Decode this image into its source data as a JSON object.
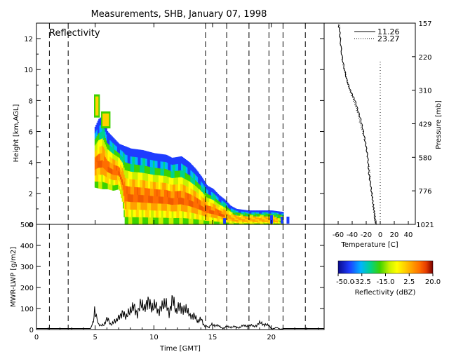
{
  "page_title": "Measurements, SHB, January 07, 1998",
  "chart_data": [
    {
      "id": "reflectivity",
      "type": "heatmap",
      "label": "Reflectivity",
      "ylabel": "Height [km,AGL]",
      "xlim": [
        0,
        24.5
      ],
      "ylim": [
        0,
        13
      ],
      "yticks": [
        0,
        2,
        4,
        6,
        8,
        10,
        12
      ],
      "xticks": [
        0,
        5,
        10,
        15,
        20
      ],
      "dashed_lines_x": [
        1.1,
        2.7,
        14.4,
        16.2,
        18.1,
        19.8,
        21.0,
        22.9
      ],
      "cloud_top_km": [
        {
          "x": 4.95,
          "top": 6.3
        },
        {
          "x": 5.25,
          "top": 6.8
        },
        {
          "x": 5.6,
          "top": 7.0
        },
        {
          "x": 6.0,
          "top": 6.0
        },
        {
          "x": 6.5,
          "top": 5.6
        },
        {
          "x": 7.0,
          "top": 5.2
        },
        {
          "x": 8.0,
          "top": 4.9
        },
        {
          "x": 9.0,
          "top": 4.8
        },
        {
          "x": 10.0,
          "top": 4.6
        },
        {
          "x": 11.0,
          "top": 4.5
        },
        {
          "x": 11.5,
          "top": 4.3
        },
        {
          "x": 12.3,
          "top": 4.4
        },
        {
          "x": 13.0,
          "top": 4.0
        },
        {
          "x": 13.5,
          "top": 3.6
        },
        {
          "x": 14.0,
          "top": 3.1
        },
        {
          "x": 14.5,
          "top": 2.5
        },
        {
          "x": 15.0,
          "top": 2.3
        },
        {
          "x": 15.5,
          "top": 1.9
        },
        {
          "x": 16.0,
          "top": 1.6
        },
        {
          "x": 16.5,
          "top": 1.2
        },
        {
          "x": 17.0,
          "top": 1.0
        },
        {
          "x": 18.0,
          "top": 0.9
        },
        {
          "x": 19.0,
          "top": 0.9
        },
        {
          "x": 20.0,
          "top": 0.9
        },
        {
          "x": 21.0,
          "top": 0.8
        }
      ],
      "cloud_base_km": [
        {
          "x": 4.95,
          "base": 2.4
        },
        {
          "x": 5.5,
          "base": 2.3
        },
        {
          "x": 6.0,
          "base": 2.3
        },
        {
          "x": 6.5,
          "base": 2.2
        },
        {
          "x": 7.0,
          "base": 2.3
        },
        {
          "x": 7.3,
          "base": 1.4
        },
        {
          "x": 7.5,
          "base": 0.0
        },
        {
          "x": 21.6,
          "base": 0.0
        }
      ],
      "upper_cells": [
        {
          "x0": 4.9,
          "x1": 5.4,
          "y0": 6.9,
          "y1": 8.4
        },
        {
          "x0": 5.5,
          "x1": 6.3,
          "y0": 6.2,
          "y1": 7.3
        }
      ]
    },
    {
      "id": "lwp",
      "type": "line",
      "ylabel": "MWR-LWP [g/m2]",
      "xlabel": "Time [GMT]",
      "xlim": [
        0,
        24.5
      ],
      "ylim": [
        0,
        500
      ],
      "yticks": [
        0,
        100,
        200,
        300,
        400,
        500
      ],
      "xticks": [
        0,
        5,
        10,
        15,
        20
      ],
      "dashed_lines_x": [
        1.1,
        2.7,
        14.4,
        16.2,
        18.1,
        19.8,
        21.0,
        22.9
      ],
      "x": [
        0,
        1,
        2,
        3,
        4,
        4.6,
        4.8,
        4.95,
        5.1,
        5.3,
        5.5,
        5.8,
        6.0,
        6.3,
        6.6,
        7.0,
        7.3,
        7.6,
        8.0,
        8.3,
        8.6,
        8.9,
        9.2,
        9.5,
        9.8,
        10.1,
        10.4,
        10.7,
        11.0,
        11.3,
        11.6,
        11.9,
        12.2,
        12.5,
        12.8,
        13.1,
        13.4,
        13.7,
        14.0,
        14.3,
        14.6,
        15.0,
        15.5,
        16.0,
        16.5,
        17.0,
        17.5,
        18.0,
        18.5,
        19.0,
        19.5,
        20.0,
        20.5,
        21.0,
        22.0,
        23.0,
        24.5
      ],
      "y": [
        5,
        5,
        5,
        5,
        5,
        5,
        30,
        85,
        60,
        20,
        15,
        30,
        55,
        25,
        35,
        55,
        80,
        60,
        90,
        110,
        70,
        130,
        95,
        140,
        100,
        120,
        85,
        110,
        130,
        75,
        150,
        85,
        115,
        90,
        100,
        60,
        70,
        40,
        50,
        20,
        10,
        25,
        15,
        8,
        15,
        10,
        15,
        20,
        15,
        30,
        25,
        8,
        5,
        5,
        5,
        5,
        5
      ]
    },
    {
      "id": "temperature",
      "type": "line",
      "xlabel": "Temperature [C]",
      "ylabel": "Pressure [mb]",
      "xlim": [
        -80,
        50
      ],
      "xticks": [
        -60,
        -40,
        -20,
        0,
        20,
        40
      ],
      "pressure_ticks": [
        157,
        220,
        310,
        429,
        580,
        776,
        1021
      ],
      "legend": [
        "11.26",
        "23.27"
      ],
      "series": [
        {
          "name": "11.26",
          "style": "solid",
          "x": [
            -60,
            -58,
            -57,
            -55,
            -52,
            -48,
            -44,
            -40,
            -36,
            -32,
            -28,
            -25,
            -22,
            -20,
            -18,
            -17,
            -16,
            -14,
            -12,
            -11,
            -10,
            -9,
            -8,
            -8,
            -7,
            -6
          ],
          "y": [
            12.9,
            12.6,
            12.0,
            11.0,
            10.2,
            9.4,
            8.8,
            8.4,
            8.0,
            7.4,
            6.8,
            6.2,
            5.5,
            5.0,
            4.4,
            3.8,
            3.2,
            2.6,
            2.0,
            1.6,
            1.2,
            0.9,
            0.6,
            0.4,
            0.2,
            0.0
          ]
        },
        {
          "name": "23.27",
          "style": "dotted",
          "x": [
            -58,
            -58,
            -56,
            -54,
            -51,
            -47,
            -43,
            -39,
            -35,
            -31,
            -28,
            -24,
            -21,
            -19,
            -17,
            -15,
            -14,
            -13,
            -12,
            -10,
            -9,
            -8,
            -7,
            -6,
            -5
          ],
          "y": [
            12.9,
            12.2,
            11.4,
            10.6,
            10.0,
            9.2,
            8.6,
            8.1,
            7.6,
            7.0,
            6.4,
            5.8,
            5.2,
            4.6,
            4.0,
            3.4,
            2.8,
            2.2,
            1.8,
            1.4,
            1.0,
            0.7,
            0.4,
            0.2,
            0.0
          ]
        }
      ]
    }
  ],
  "colorbar": {
    "title": "Reflectivity (dBZ)",
    "tick_labels": [
      "-50.0",
      "-32.5",
      "-15.0",
      "2.5",
      "20.0"
    ],
    "colors": [
      "#0a0a8c",
      "#1e3cff",
      "#00b4ff",
      "#00d28c",
      "#3cd200",
      "#c8f000",
      "#ffff00",
      "#ffd200",
      "#ffa000",
      "#ff6e00",
      "#e63c00",
      "#b40000",
      "#780000"
    ]
  }
}
